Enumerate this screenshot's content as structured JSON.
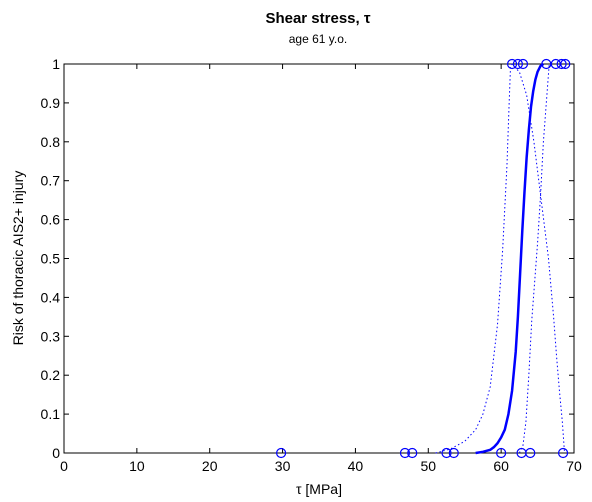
{
  "chart_data": {
    "type": "scatter",
    "title": "Shear stress, τ",
    "subtitle": "age 61 y.o.",
    "xlabel": "τ [MPa]",
    "ylabel": "Risk of thoracic AIS2+ injury",
    "xlim": [
      0,
      70
    ],
    "ylim": [
      0,
      1
    ],
    "xticks": [
      "0",
      "10",
      "20",
      "30",
      "40",
      "50",
      "60",
      "70"
    ],
    "yticks": [
      "0",
      "0.1",
      "0.2",
      "0.3",
      "0.4",
      "0.5",
      "0.6",
      "0.7",
      "0.8",
      "0.9",
      "1"
    ],
    "grid": false,
    "colors": {
      "series": "#0000ff",
      "axis": "#000000"
    },
    "series": [
      {
        "kind": "fitted-curve",
        "style": "solid",
        "x": [
          56.5,
          57.5,
          58.5,
          59.0,
          59.5,
          60.0,
          60.5,
          61.0,
          61.5,
          62.0,
          62.3,
          62.6,
          62.9,
          63.2,
          63.5,
          63.8,
          64.1,
          64.4,
          64.7,
          65.0,
          65.4,
          65.8
        ],
        "y": [
          0.0,
          0.003,
          0.008,
          0.015,
          0.025,
          0.04,
          0.06,
          0.1,
          0.16,
          0.26,
          0.35,
          0.46,
          0.57,
          0.67,
          0.76,
          0.83,
          0.89,
          0.93,
          0.96,
          0.98,
          0.995,
          1.0
        ]
      },
      {
        "kind": "confidence-bound-upper",
        "style": "dotted",
        "x": [
          51.0,
          53.0,
          55.0,
          56.5,
          57.5,
          58.5,
          59.5,
          60.2,
          60.8,
          61.1,
          61.3
        ],
        "y": [
          0.0,
          0.01,
          0.03,
          0.06,
          0.1,
          0.17,
          0.33,
          0.52,
          0.74,
          0.9,
          1.0
        ]
      },
      {
        "kind": "confidence-bound-lower",
        "style": "dotted",
        "x": [
          62.5,
          63.0,
          63.4,
          63.8,
          64.2,
          64.6,
          65.0,
          65.4,
          65.8,
          66.2,
          66.6
        ],
        "y": [
          0.0,
          0.02,
          0.08,
          0.2,
          0.34,
          0.44,
          0.54,
          0.66,
          0.8,
          0.9,
          1.0
        ]
      },
      {
        "kind": "upper-confidence-tail",
        "style": "dotted",
        "x": [
          61.4,
          62.5,
          63.5,
          64.5,
          65.5,
          66.5,
          67.2,
          67.6,
          68.0,
          68.4,
          68.7
        ],
        "y": [
          1.0,
          0.98,
          0.92,
          0.8,
          0.65,
          0.5,
          0.35,
          0.25,
          0.16,
          0.08,
          0.0
        ]
      },
      {
        "kind": "observations",
        "marker": "circle",
        "x": [
          29.8,
          46.8,
          47.8,
          52.5,
          53.5,
          60.0,
          62.8,
          64.0,
          68.5,
          61.5,
          62.3,
          63.0,
          66.2,
          67.5,
          68.3,
          68.8
        ],
        "y": [
          0,
          0,
          0,
          0,
          0,
          0,
          0,
          0,
          0,
          1,
          1,
          1,
          1,
          1,
          1,
          1
        ]
      }
    ]
  }
}
